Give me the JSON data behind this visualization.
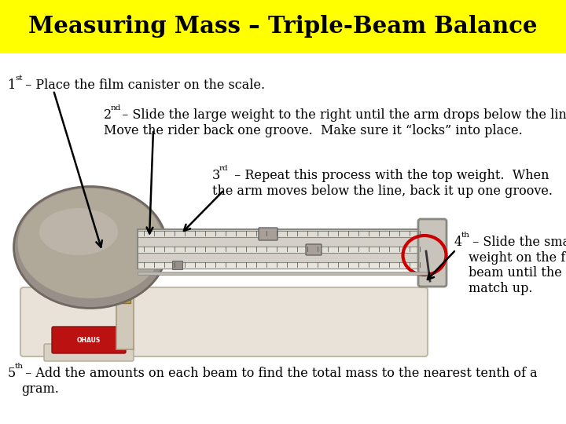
{
  "title": "Measuring Mass – Triple-Beam Balance",
  "title_bg": "#FFFF00",
  "title_color": "#000000",
  "bg_color": "#FFFFFF",
  "step1_num": "1",
  "step1_sup": "st",
  "step1_text": " – Place the film canister on the scale.",
  "step2_num": "2",
  "step2_sup": "nd",
  "step2_line1": " – Slide the large weight to the right until the arm drops below the line.",
  "step2_line2": "Move the rider back one groove.  Make sure it “locks” into place.",
  "step3_num": "3",
  "step3_sup": "rd",
  "step3_line1": " – Repeat this process with the top weight.  When",
  "step3_line2": "the arm moves below the line, back it up one groove.",
  "step4_num": "4",
  "step4_sup": "th",
  "step4_text": " – Slide the small\nweight on the front\nbeam until the lines\nmatch up.",
  "step5_num": "5",
  "step5_sup": "th",
  "step5_text": " – Add the amounts on each beam to find the total mass to the nearest tenth of a\ngram.",
  "circle_color": "#CC0000",
  "arrow_color": "#000000"
}
